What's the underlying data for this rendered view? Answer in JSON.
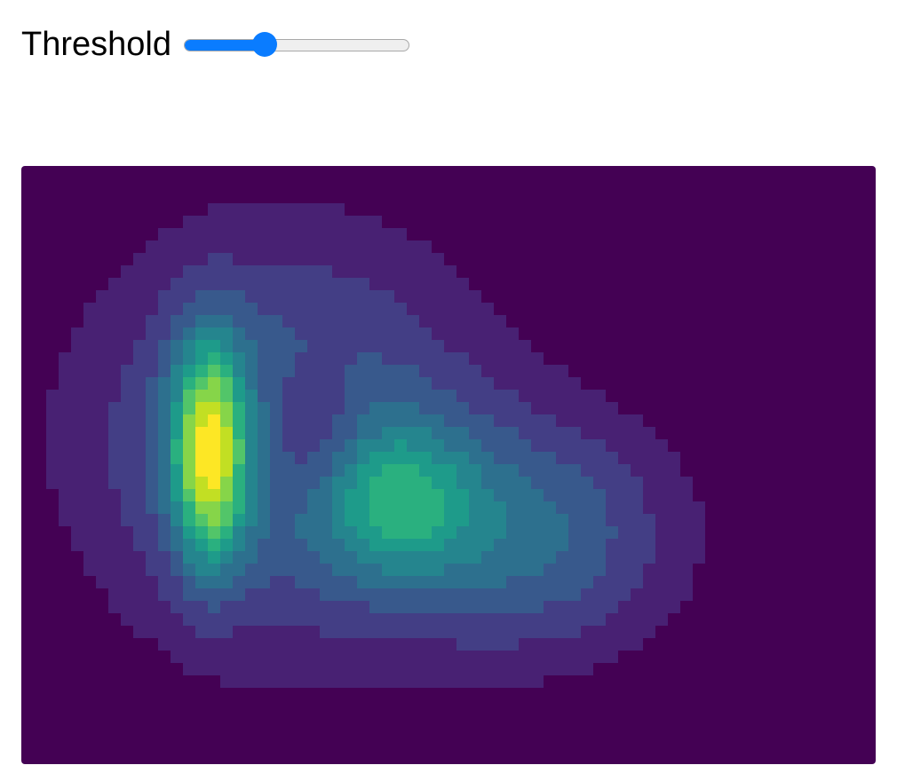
{
  "controls": {
    "threshold_label": "Threshold",
    "threshold_fraction": 0.36
  },
  "chart_data": {
    "type": "heatmap",
    "colormap": "viridis",
    "grid": false,
    "levels": 11,
    "colors": [
      "#440154",
      "#482173",
      "#433e85",
      "#38598c",
      "#2d708e",
      "#25858e",
      "#1e9b8a",
      "#2ab07f",
      "#52c569",
      "#86d549",
      "#c2df23",
      "#fde725"
    ],
    "peaks": [
      {
        "x": 0.22,
        "y": 0.48,
        "amplitude": 1.0,
        "spread_x": 0.03,
        "spread_y": 0.13
      },
      {
        "x": 0.31,
        "y": 0.46,
        "amplitude": 0.55,
        "spread_x": 0.16,
        "spread_y": 0.23
      },
      {
        "x": 0.44,
        "y": 0.56,
        "amplitude": 0.45,
        "spread_x": 0.06,
        "spread_y": 0.09
      },
      {
        "x": 0.6,
        "y": 0.62,
        "amplitude": 0.45,
        "spread_x": 0.12,
        "spread_y": 0.14
      },
      {
        "x": 0.34,
        "y": 0.45,
        "amplitude": -0.3,
        "spread_x": 0.05,
        "spread_y": 0.09
      }
    ]
  }
}
